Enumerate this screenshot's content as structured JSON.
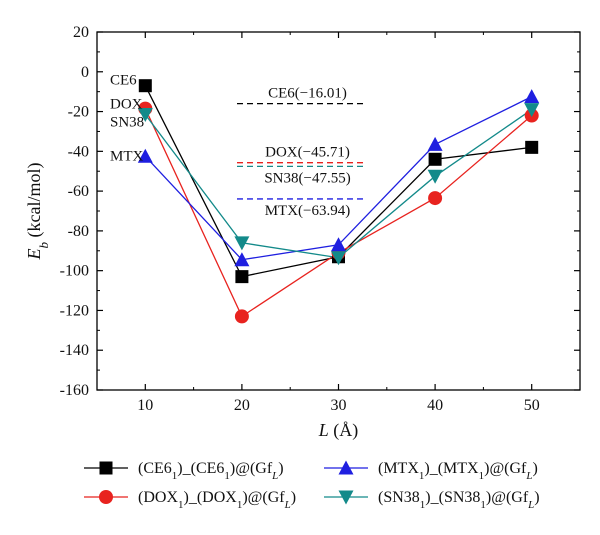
{
  "chart_data": {
    "type": "line",
    "x": [
      10,
      20,
      30,
      40,
      50
    ],
    "xlabel": "L (Å)",
    "ylabel": "E_b (kcal/mol)",
    "xlim": [
      5,
      55
    ],
    "ylim": [
      -160,
      20
    ],
    "xticks": [
      10,
      20,
      30,
      40,
      50
    ],
    "yticks": [
      20,
      0,
      -20,
      -40,
      -60,
      -80,
      -100,
      -120,
      -140,
      -160
    ],
    "grid": false,
    "legend_position": "bottom",
    "series": [
      {
        "name": "(CE6_1)_(CE6_1)@(Gf_L)",
        "color": "#000000",
        "marker": "square",
        "values": [
          -7,
          -103,
          -93,
          -44,
          -38
        ]
      },
      {
        "name": "(DOX_1)_(DOX_1)@(Gf_L)",
        "color": "#e8231f",
        "marker": "circle",
        "values": [
          -18.5,
          -123,
          -91,
          -63.5,
          -22
        ]
      },
      {
        "name": "(MTX_1)_(MTX_1)@(Gf_L)",
        "color": "#1f1fe0",
        "marker": "triangle-up",
        "values": [
          -42.5,
          -94.5,
          -87,
          -36.5,
          -12.5
        ]
      },
      {
        "name": "(SN38_1)_(SN38_1)@(Gf_L)",
        "color": "#138a8a",
        "marker": "triangle-down",
        "values": [
          -21.5,
          -86,
          -93.5,
          -52.5,
          -19
        ]
      }
    ],
    "reference_lines": [
      {
        "label": "CE6(−16.01)",
        "value": -16.01,
        "color": "#000000"
      },
      {
        "label": "DOX(−45.71)",
        "value": -45.71,
        "color": "#e8231f"
      },
      {
        "label": "SN38(−47.55)",
        "value": -47.55,
        "color": "#138a8a"
      },
      {
        "label": "MTX(−63.94)",
        "value": -63.94,
        "color": "#1f1fe0"
      }
    ],
    "series_labels": [
      "CE6",
      "DOX",
      "SN38",
      "MTX"
    ]
  }
}
